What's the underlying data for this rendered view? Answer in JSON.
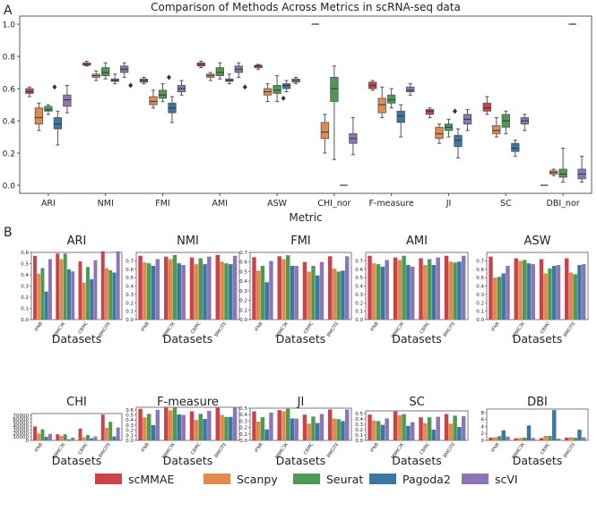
{
  "panel_a_letter": "A",
  "panel_b_letter": "B",
  "colors": {
    "scMMAE": "#c8434c",
    "Scanpy": "#e08b4d",
    "Seurat": "#4f9a52",
    "Pagoda2": "#3b77a3",
    "scVI": "#8e75b5"
  },
  "chart_data": [
    {
      "type": "box",
      "title": "Comparison of Methods Across Metrics in scRNA-seq data",
      "xlabel": "Metric",
      "ylabel": "",
      "ylim": [
        -0.05,
        1.05
      ],
      "yticks": [
        "0.0",
        "0.2",
        "0.4",
        "0.6",
        "0.8",
        "1.0"
      ],
      "categories": [
        "ARI",
        "NMI",
        "FMI",
        "AMI",
        "ASW",
        "CHI_nor",
        "F-measure",
        "JI",
        "SC",
        "DBI_nor"
      ],
      "methods": [
        "scMMAE",
        "Scanpy",
        "Seurat",
        "Pagoda2",
        "scVI"
      ],
      "boxes": [
        [
          [
            0.55,
            0.57,
            0.58,
            0.6,
            0.61,
            null
          ],
          [
            0.34,
            0.38,
            0.42,
            0.48,
            0.51,
            null
          ],
          [
            0.44,
            0.46,
            0.47,
            0.49,
            0.5,
            0.61
          ],
          [
            0.25,
            0.35,
            0.38,
            0.42,
            0.46,
            null
          ],
          [
            0.45,
            0.49,
            0.53,
            0.56,
            0.62,
            null
          ]
        ],
        [
          [
            0.74,
            0.745,
            0.75,
            0.76,
            0.77,
            null
          ],
          [
            0.65,
            0.67,
            0.68,
            0.69,
            0.71,
            null
          ],
          [
            0.66,
            0.68,
            0.7,
            0.73,
            0.76,
            null
          ],
          [
            0.63,
            0.645,
            0.65,
            0.66,
            0.69,
            null
          ],
          [
            0.67,
            0.7,
            0.72,
            0.74,
            0.76,
            0.62
          ]
        ],
        [
          [
            0.63,
            0.64,
            0.65,
            0.66,
            0.67,
            null
          ],
          [
            0.48,
            0.5,
            0.52,
            0.55,
            0.59,
            null
          ],
          [
            0.52,
            0.54,
            0.56,
            0.59,
            0.63,
            0.67
          ],
          [
            0.39,
            0.45,
            0.48,
            0.51,
            0.55,
            null
          ],
          [
            0.56,
            0.58,
            0.6,
            0.62,
            0.65,
            null
          ]
        ],
        [
          [
            0.73,
            0.74,
            0.75,
            0.76,
            0.77,
            null
          ],
          [
            0.65,
            0.67,
            0.68,
            0.69,
            0.7,
            null
          ],
          [
            0.66,
            0.68,
            0.7,
            0.73,
            0.76,
            null
          ],
          [
            0.63,
            0.645,
            0.65,
            0.66,
            0.69,
            null
          ],
          [
            0.67,
            0.7,
            0.72,
            0.74,
            0.76,
            0.61
          ]
        ],
        [
          [
            0.72,
            0.73,
            0.74,
            0.745,
            0.75,
            null
          ],
          [
            0.52,
            0.56,
            0.58,
            0.6,
            0.63,
            null
          ],
          [
            0.52,
            0.57,
            0.59,
            0.62,
            0.68,
            0.54
          ],
          [
            0.58,
            0.6,
            0.62,
            0.63,
            0.65,
            null
          ],
          [
            0.63,
            0.64,
            0.65,
            0.66,
            0.67,
            null
          ]
        ],
        [
          [
            1.0,
            1.0,
            1.0,
            1.0,
            1.0,
            null
          ],
          [
            0.2,
            0.29,
            0.33,
            0.39,
            0.44,
            null
          ],
          [
            0.16,
            0.52,
            0.6,
            0.67,
            0.74,
            null
          ],
          [
            0.0,
            0.0,
            0.0,
            0.0,
            0.0,
            null
          ],
          [
            0.19,
            0.26,
            0.29,
            0.32,
            0.42,
            null
          ]
        ],
        [
          [
            0.59,
            0.6,
            0.62,
            0.64,
            0.65,
            null
          ],
          [
            0.42,
            0.45,
            0.5,
            0.54,
            0.61,
            null
          ],
          [
            0.48,
            0.51,
            0.53,
            0.56,
            0.6,
            null
          ],
          [
            0.3,
            0.39,
            0.43,
            0.46,
            0.5,
            null
          ],
          [
            0.56,
            0.58,
            0.59,
            0.61,
            0.63,
            null
          ]
        ],
        [
          [
            0.42,
            0.44,
            0.46,
            0.47,
            0.48,
            null
          ],
          [
            0.26,
            0.29,
            0.32,
            0.36,
            0.38,
            null
          ],
          [
            0.3,
            0.34,
            0.36,
            0.38,
            0.41,
            0.46
          ],
          [
            0.17,
            0.24,
            0.28,
            0.31,
            0.35,
            null
          ],
          [
            0.34,
            0.38,
            0.41,
            0.44,
            0.47,
            null
          ]
        ],
        [
          [
            0.44,
            0.46,
            0.48,
            0.51,
            0.55,
            null
          ],
          [
            0.3,
            0.32,
            0.34,
            0.37,
            0.42,
            null
          ],
          [
            0.32,
            0.36,
            0.4,
            0.44,
            0.46,
            null
          ],
          [
            0.18,
            0.21,
            0.23,
            0.26,
            0.28,
            null
          ],
          [
            0.34,
            0.38,
            0.4,
            0.42,
            0.44,
            null
          ]
        ],
        [
          [
            0.0,
            0.0,
            0.0,
            0.0,
            0.0,
            null
          ],
          [
            0.06,
            0.07,
            0.08,
            0.09,
            0.1,
            null
          ],
          [
            0.02,
            0.05,
            0.07,
            0.1,
            0.23,
            null
          ],
          [
            1.0,
            1.0,
            1.0,
            1.0,
            1.0,
            null
          ],
          [
            0.02,
            0.04,
            0.07,
            0.1,
            0.18,
            null
          ]
        ]
      ]
    },
    {
      "type": "bar",
      "title": "ARI",
      "xlabel": "Datasets",
      "categories": [
        "IFNB",
        "PBMC3K",
        "CBMC",
        "BMCITE"
      ],
      "ylim": [
        0,
        0.6
      ],
      "yticks": [
        "0.0",
        "0.1",
        "0.2",
        "0.3",
        "0.4",
        "0.5",
        "0.6"
      ],
      "series": [
        {
          "name": "scMMAE",
          "values": [
            0.57,
            0.59,
            0.52,
            0.61
          ]
        },
        {
          "name": "Scanpy",
          "values": [
            0.41,
            0.54,
            0.33,
            0.46
          ]
        },
        {
          "name": "Seurat",
          "values": [
            0.46,
            0.59,
            0.47,
            0.44
          ]
        },
        {
          "name": "Pagoda2",
          "values": [
            0.25,
            0.45,
            0.36,
            0.42
          ]
        },
        {
          "name": "scVI",
          "values": [
            0.54,
            0.43,
            0.53,
            0.61
          ]
        }
      ]
    },
    {
      "type": "bar",
      "title": "NMI",
      "xlabel": "Datasets",
      "categories": [
        "IFNB",
        "PBMC3K",
        "CBMC",
        "BMCITE"
      ],
      "ylim": [
        0,
        0.8
      ],
      "yticks": [
        "0.0",
        "0.1",
        "0.2",
        "0.3",
        "0.4",
        "0.5",
        "0.6",
        "0.7"
      ],
      "series": [
        {
          "name": "scMMAE",
          "values": [
            0.76,
            0.75,
            0.74,
            0.77
          ]
        },
        {
          "name": "Scanpy",
          "values": [
            0.68,
            0.72,
            0.66,
            0.69
          ]
        },
        {
          "name": "Seurat",
          "values": [
            0.67,
            0.77,
            0.73,
            0.67
          ]
        },
        {
          "name": "Pagoda2",
          "values": [
            0.64,
            0.67,
            0.66,
            0.66
          ]
        },
        {
          "name": "scVI",
          "values": [
            0.72,
            0.65,
            0.75,
            0.76
          ]
        }
      ]
    },
    {
      "type": "bar",
      "title": "FMI",
      "xlabel": "Datasets",
      "categories": [
        "IFNB",
        "PBMC3K",
        "CBMC",
        "BMCITE"
      ],
      "ylim": [
        0,
        0.7
      ],
      "yticks": [
        "0.0",
        "0.1",
        "0.2",
        "0.3",
        "0.4",
        "0.5",
        "0.6",
        "0.7"
      ],
      "series": [
        {
          "name": "scMMAE",
          "values": [
            0.65,
            0.66,
            0.6,
            0.66
          ]
        },
        {
          "name": "Scanpy",
          "values": [
            0.51,
            0.63,
            0.5,
            0.53
          ]
        },
        {
          "name": "Seurat",
          "values": [
            0.56,
            0.67,
            0.56,
            0.5
          ]
        },
        {
          "name": "Pagoda2",
          "values": [
            0.39,
            0.56,
            0.46,
            0.51
          ]
        },
        {
          "name": "scVI",
          "values": [
            0.61,
            0.56,
            0.6,
            0.66
          ]
        }
      ]
    },
    {
      "type": "bar",
      "title": "AMI",
      "xlabel": "Datasets",
      "categories": [
        "IFNB",
        "PBMC3K",
        "CBMC",
        "BMCITE"
      ],
      "ylim": [
        0,
        0.8
      ],
      "yticks": [
        "0.0",
        "0.1",
        "0.2",
        "0.3",
        "0.4",
        "0.5",
        "0.6",
        "0.7"
      ],
      "series": [
        {
          "name": "scMMAE",
          "values": [
            0.76,
            0.74,
            0.73,
            0.76
          ]
        },
        {
          "name": "Scanpy",
          "values": [
            0.67,
            0.71,
            0.65,
            0.69
          ]
        },
        {
          "name": "Seurat",
          "values": [
            0.66,
            0.76,
            0.72,
            0.68
          ]
        },
        {
          "name": "Pagoda2",
          "values": [
            0.63,
            0.65,
            0.65,
            0.69
          ]
        },
        {
          "name": "scVI",
          "values": [
            0.71,
            0.63,
            0.74,
            0.76
          ]
        }
      ]
    },
    {
      "type": "bar",
      "title": "ASW",
      "xlabel": "Datasets",
      "categories": [
        "IFNB",
        "PBMC3K",
        "CBMC",
        "BMCITE"
      ],
      "ylim": [
        0,
        0.8
      ],
      "yticks": [
        "0.0",
        "0.1",
        "0.2",
        "0.3",
        "0.4",
        "0.5",
        "0.6",
        "0.7"
      ],
      "series": [
        {
          "name": "scMMAE",
          "values": [
            0.75,
            0.73,
            0.72,
            0.73
          ]
        },
        {
          "name": "Scanpy",
          "values": [
            0.5,
            0.7,
            0.55,
            0.56
          ]
        },
        {
          "name": "Seurat",
          "values": [
            0.51,
            0.71,
            0.61,
            0.54
          ]
        },
        {
          "name": "Pagoda2",
          "values": [
            0.55,
            0.67,
            0.64,
            0.65
          ]
        },
        {
          "name": "scVI",
          "values": [
            0.64,
            0.66,
            0.65,
            0.66
          ]
        }
      ]
    },
    {
      "type": "bar",
      "title": "CHI",
      "xlabel": "Datasets",
      "categories": [
        "IFNB",
        "PBMC3K",
        "CBMC",
        "BMCITE"
      ],
      "ylim": [
        0,
        75000
      ],
      "yticks": [
        "0",
        "10000",
        "20000",
        "30000",
        "40000",
        "50000",
        "60000",
        "70000"
      ],
      "series": [
        {
          "name": "scMMAE",
          "values": [
            39000,
            17000,
            33000,
            72000
          ]
        },
        {
          "name": "Scanpy",
          "values": [
            19000,
            13000,
            9000,
            35000
          ]
        },
        {
          "name": "Seurat",
          "values": [
            31000,
            17000,
            15000,
            52000
          ]
        },
        {
          "name": "Pagoda2",
          "values": [
            10000,
            3000,
            6000,
            11000
          ]
        },
        {
          "name": "scVI",
          "values": [
            18000,
            8000,
            11000,
            36000
          ]
        }
      ]
    },
    {
      "type": "bar",
      "title": "F-measure",
      "xlabel": "Datasets",
      "categories": [
        "IFNB",
        "PBMC3K",
        "CBMC",
        "BMCITE"
      ],
      "ylim": [
        0,
        0.65
      ],
      "yticks": [
        "0.0",
        "0.1",
        "0.2",
        "0.3",
        "0.4",
        "0.5",
        "0.6"
      ],
      "series": [
        {
          "name": "scMMAE",
          "values": [
            0.62,
            0.65,
            0.57,
            0.64
          ]
        },
        {
          "name": "Scanpy",
          "values": [
            0.45,
            0.59,
            0.4,
            0.5
          ]
        },
        {
          "name": "Seurat",
          "values": [
            0.52,
            0.65,
            0.52,
            0.46
          ]
        },
        {
          "name": "Pagoda2",
          "values": [
            0.3,
            0.51,
            0.42,
            0.46
          ]
        },
        {
          "name": "scVI",
          "values": [
            0.6,
            0.5,
            0.58,
            0.64
          ]
        }
      ]
    },
    {
      "type": "bar",
      "title": "JI",
      "xlabel": "Datasets",
      "categories": [
        "IFNB",
        "PBMC3K",
        "CBMC",
        "BMCITE"
      ],
      "ylim": [
        0,
        0.5
      ],
      "yticks": [
        "0.0",
        "0.1",
        "0.2",
        "0.3",
        "0.4",
        "0.5"
      ],
      "series": [
        {
          "name": "scMMAE",
          "values": [
            0.45,
            0.47,
            0.4,
            0.48
          ]
        },
        {
          "name": "Scanpy",
          "values": [
            0.29,
            0.45,
            0.26,
            0.34
          ]
        },
        {
          "name": "Seurat",
          "values": [
            0.36,
            0.49,
            0.37,
            0.33
          ]
        },
        {
          "name": "Pagoda2",
          "values": [
            0.17,
            0.34,
            0.27,
            0.3
          ]
        },
        {
          "name": "scVI",
          "values": [
            0.43,
            0.34,
            0.41,
            0.48
          ]
        }
      ]
    },
    {
      "type": "bar",
      "title": "SC",
      "xlabel": "Datasets",
      "categories": [
        "IFNB",
        "PBMC3K",
        "CBMC",
        "BMCITE"
      ],
      "ylim": [
        0,
        0.55
      ],
      "yticks": [
        "0.0",
        "0.1",
        "0.2",
        "0.3",
        "0.4",
        "0.5"
      ],
      "series": [
        {
          "name": "scMMAE",
          "values": [
            0.48,
            0.54,
            0.43,
            0.49
          ]
        },
        {
          "name": "Scanpy",
          "values": [
            0.37,
            0.47,
            0.32,
            0.31
          ]
        },
        {
          "name": "Seurat",
          "values": [
            0.36,
            0.49,
            0.43,
            0.46
          ]
        },
        {
          "name": "Pagoda2",
          "values": [
            0.29,
            0.27,
            0.2,
            0.25
          ]
        },
        {
          "name": "scVI",
          "values": [
            0.41,
            0.34,
            0.44,
            0.45
          ]
        }
      ]
    },
    {
      "type": "bar",
      "title": "DBI",
      "xlabel": "Datasets",
      "categories": [
        "IFNB",
        "PBMC3K",
        "CBMC",
        "BMCITE"
      ],
      "ylim": [
        0,
        9
      ],
      "yticks": [
        "0",
        "2",
        "4",
        "6",
        "8"
      ],
      "series": [
        {
          "name": "scMMAE",
          "values": [
            0.8,
            0.6,
            0.7,
            0.8
          ]
        },
        {
          "name": "Scanpy",
          "values": [
            0.9,
            0.7,
            1.3,
            0.9
          ]
        },
        {
          "name": "Seurat",
          "values": [
            1.2,
            0.8,
            1.3,
            0.8
          ]
        },
        {
          "name": "Pagoda2",
          "values": [
            2.9,
            4.3,
            8.7,
            3.1
          ]
        },
        {
          "name": "scVI",
          "values": [
            1.1,
            0.7,
            0.5,
            0.9
          ]
        }
      ]
    }
  ],
  "legend": [
    "scMMAE",
    "Scanpy",
    "Seurat",
    "Pagoda2",
    "scVI"
  ]
}
